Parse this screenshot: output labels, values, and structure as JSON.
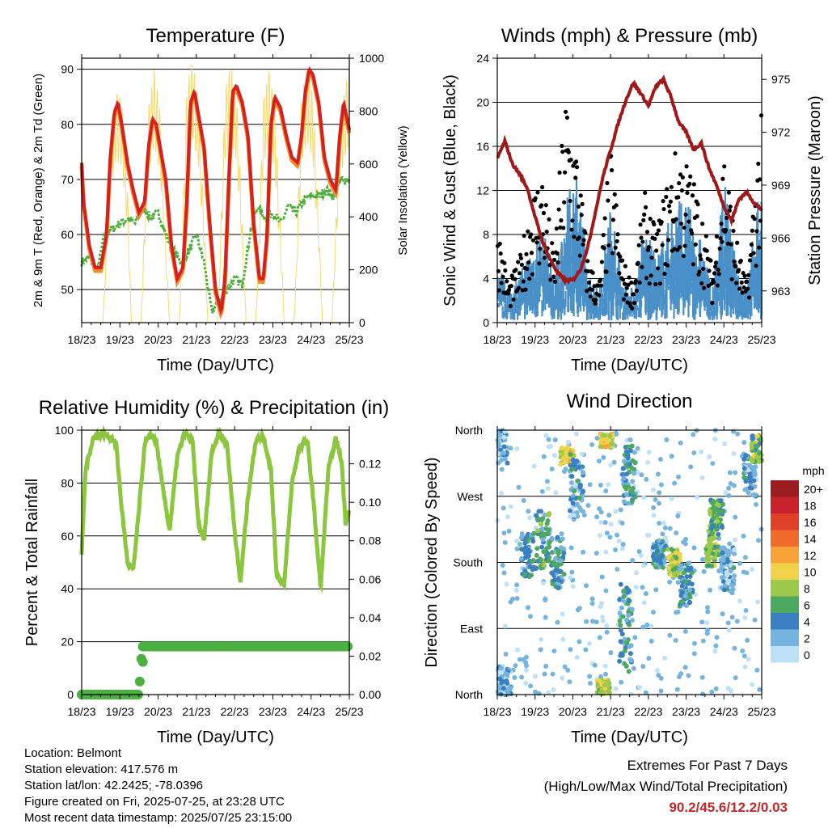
{
  "colors": {
    "temp_2m": "#d62020",
    "temp_9m": "#f28c28",
    "dewpoint": "#4caf3c",
    "solar": "#f7d96b",
    "wind": "#4a90c8",
    "gust": "#000000",
    "pressure": "#a01818",
    "rh": "#8cc63f",
    "rain": "#4cb040",
    "extremes_text": "#c62828"
  },
  "time_axis": {
    "ticks": [
      "18/23",
      "19/23",
      "20/23",
      "21/23",
      "22/23",
      "23/23",
      "24/23",
      "25/23"
    ],
    "xlabel": "Time (Day/UTC)"
  },
  "chart_data": [
    {
      "type": "line",
      "title": "Temperature (F)",
      "xlabel": "Time (Day/UTC)",
      "ylabel": "2m & 9m T (Red, Orange) & 2m Td (Green)",
      "y2label": "Solar Insolation (Yellow)",
      "ylim": [
        44,
        92
      ],
      "y2lim": [
        0,
        1000
      ],
      "yticks": [
        50,
        60,
        70,
        80,
        90
      ],
      "y2ticks": [
        0,
        200,
        400,
        600,
        800,
        1000
      ],
      "series": [
        {
          "key": "temp",
          "x": [
            0,
            0.05,
            0.2,
            0.35,
            0.5,
            0.65,
            0.75,
            0.85,
            0.95,
            1.05,
            1.2,
            1.35,
            1.5,
            1.65,
            1.75,
            1.85,
            1.95,
            2.05,
            2.2,
            2.35,
            2.5,
            2.65,
            2.75,
            2.85,
            2.95,
            3.05,
            3.2,
            3.35,
            3.5,
            3.65,
            3.75,
            3.85,
            3.95,
            4.05,
            4.2,
            4.35,
            4.5,
            4.65,
            4.75,
            4.85,
            4.95,
            5.05,
            5.2,
            5.35,
            5.5,
            5.65,
            5.75,
            5.85,
            5.95,
            6.05,
            6.2,
            6.35,
            6.5,
            6.65,
            6.75,
            6.85,
            7.0
          ],
          "values": [
            73,
            66,
            58,
            54,
            54,
            60,
            74,
            82,
            84,
            80,
            73,
            68,
            64,
            66,
            76,
            81,
            80,
            76,
            70,
            58,
            52,
            54,
            66,
            84,
            86,
            82,
            76,
            62,
            50,
            46,
            52,
            70,
            86,
            87,
            84,
            78,
            62,
            52,
            52,
            60,
            80,
            85,
            83,
            78,
            74,
            73,
            78,
            86,
            90,
            89,
            84,
            74,
            70,
            68,
            78,
            84,
            79
          ]
        },
        {
          "key": "dewpoint",
          "x": [
            0,
            0.2,
            0.4,
            0.6,
            0.8,
            1.0,
            1.2,
            1.4,
            1.6,
            1.8,
            2.0,
            2.2,
            2.4,
            2.6,
            2.8,
            3.0,
            3.2,
            3.4,
            3.6,
            3.8,
            4.0,
            4.2,
            4.4,
            4.6,
            4.8,
            5.0,
            5.2,
            5.4,
            5.6,
            5.8,
            6.0,
            6.2,
            6.4,
            6.6,
            6.8,
            7.0
          ],
          "values": [
            55,
            56,
            53,
            60,
            61,
            62,
            63,
            62,
            65,
            63,
            64,
            60,
            57,
            55,
            57,
            60,
            55,
            46,
            48,
            50,
            52,
            51,
            60,
            65,
            63,
            64,
            62,
            65,
            64,
            66,
            67,
            67,
            68,
            67,
            70,
            70
          ]
        },
        {
          "key": "solar",
          "x": [
            0,
            0.55,
            0.6,
            0.75,
            0.9,
            1.05,
            1.2,
            1.3,
            1.55,
            1.6,
            1.75,
            1.9,
            2.05,
            2.2,
            2.3,
            2.55,
            2.6,
            2.75,
            2.9,
            3.05,
            3.2,
            3.3,
            3.55,
            3.6,
            3.75,
            3.9,
            4.05,
            4.2,
            4.3,
            4.55,
            4.6,
            4.75,
            4.9,
            5.05,
            5.2,
            5.3,
            5.55,
            5.6,
            5.75,
            5.9,
            6.05,
            6.2,
            6.3,
            6.55,
            6.6,
            6.75,
            6.9,
            7.0
          ],
          "values": [
            0,
            0,
            150,
            700,
            880,
            850,
            500,
            0,
            0,
            200,
            820,
            960,
            800,
            300,
            0,
            0,
            160,
            900,
            990,
            850,
            400,
            0,
            0,
            180,
            880,
            980,
            870,
            380,
            0,
            0,
            170,
            850,
            960,
            820,
            350,
            0,
            0,
            160,
            860,
            970,
            860,
            380,
            0,
            0,
            200,
            760,
            900,
            950
          ]
        }
      ]
    },
    {
      "type": "scatter",
      "title": "Winds (mph) & Pressure (mb)",
      "xlabel": "Time (Day/UTC)",
      "ylabel": "Sonic Wind & Gust (Blue, Black)",
      "y2label": "Station Pressure (Maroon)",
      "ylim": [
        0,
        24
      ],
      "y2lim": [
        961.2,
        976.2
      ],
      "yticks": [
        0,
        4,
        8,
        12,
        16,
        20,
        24
      ],
      "y2ticks": [
        963,
        966,
        969,
        972,
        975
      ],
      "series": [
        {
          "key": "wind",
          "x": [
            0,
            0.3,
            0.6,
            0.9,
            1.2,
            1.5,
            1.8,
            2.1,
            2.4,
            2.7,
            3.0,
            3.3,
            3.6,
            3.9,
            4.2,
            4.5,
            4.8,
            5.1,
            5.4,
            5.7,
            6.0,
            6.3,
            6.6,
            6.9,
            7.0
          ],
          "values": [
            4,
            2,
            3,
            5,
            6,
            3,
            7,
            10,
            3,
            2,
            8,
            3,
            2,
            6,
            4,
            6,
            8,
            7,
            5,
            2,
            9,
            4,
            2,
            8,
            9
          ]
        },
        {
          "key": "gust",
          "x": [
            0,
            0.3,
            0.6,
            0.9,
            1.2,
            1.5,
            1.8,
            2.1,
            2.4,
            2.7,
            3.0,
            3.3,
            3.6,
            3.9,
            4.2,
            4.5,
            4.8,
            5.1,
            5.4,
            5.7,
            6.0,
            6.3,
            6.6,
            6.9,
            7.0
          ],
          "values": [
            8,
            3,
            5,
            10,
            12,
            5,
            18,
            14,
            5,
            3,
            14,
            5,
            3,
            10,
            7,
            11,
            14,
            12,
            9,
            4,
            14,
            7,
            3,
            14,
            16
          ]
        },
        {
          "key": "pressure",
          "x": [
            0,
            0.2,
            0.4,
            0.6,
            0.8,
            1.0,
            1.2,
            1.4,
            1.6,
            1.8,
            2.0,
            2.2,
            2.4,
            2.6,
            2.8,
            3.0,
            3.2,
            3.4,
            3.6,
            3.8,
            4.0,
            4.2,
            4.4,
            4.6,
            4.8,
            5.0,
            5.2,
            5.4,
            5.6,
            5.8,
            6.0,
            6.2,
            6.4,
            6.6,
            6.8,
            7.0
          ],
          "values": [
            970.5,
            971.5,
            970.2,
            969.6,
            968.8,
            967.2,
            965.8,
            964.8,
            964.0,
            963.6,
            963.6,
            964.2,
            965.5,
            967.5,
            969.5,
            971.0,
            972.5,
            973.8,
            974.8,
            974.2,
            973.5,
            974.6,
            975.0,
            974.0,
            972.6,
            972.0,
            971.0,
            971.4,
            970.0,
            969.0,
            967.8,
            967.0,
            968.2,
            968.6,
            968.0,
            967.6
          ]
        }
      ]
    },
    {
      "type": "line",
      "title": "Relative Humidity (%) & Precipitation (in)",
      "xlabel": "Time (Day/UTC)",
      "ylabel": "Percent & Total Rainfall",
      "ylim": [
        0,
        100
      ],
      "y2lim": [
        0,
        0.1375
      ],
      "yticks": [
        0,
        20,
        40,
        60,
        80,
        100
      ],
      "y2ticks": [
        "0.00",
        "0.02",
        "0.04",
        "0.06",
        "0.08",
        "0.10",
        "0.12"
      ],
      "series": [
        {
          "key": "rh",
          "x": [
            0,
            0.1,
            0.3,
            0.5,
            0.7,
            0.9,
            1.05,
            1.2,
            1.35,
            1.5,
            1.65,
            1.8,
            1.95,
            2.1,
            2.3,
            2.5,
            2.7,
            2.9,
            3.05,
            3.2,
            3.4,
            3.6,
            3.8,
            4.0,
            4.15,
            4.35,
            4.55,
            4.75,
            4.95,
            5.1,
            5.3,
            5.5,
            5.7,
            5.9,
            6.05,
            6.25,
            6.45,
            6.65,
            6.8,
            6.9,
            7.0
          ],
          "values": [
            53,
            85,
            97,
            99,
            98,
            95,
            70,
            50,
            47,
            70,
            95,
            98,
            96,
            80,
            62,
            90,
            99,
            96,
            65,
            58,
            92,
            99,
            95,
            62,
            42,
            75,
            96,
            98,
            85,
            45,
            42,
            80,
            94,
            96,
            75,
            40,
            85,
            97,
            88,
            65,
            70
          ]
        },
        {
          "key": "rain",
          "x": [
            0,
            1.3,
            1.5,
            1.55,
            1.6,
            1.7,
            7.0
          ],
          "values": [
            0.0,
            0.0,
            0.0,
            0.017,
            0.025,
            0.025,
            0.025
          ]
        }
      ]
    },
    {
      "type": "scatter",
      "title": "Wind Direction",
      "xlabel": "Time (Day/UTC)",
      "ylabel": "Direction (Colored By Speed)",
      "yticks": [
        "North",
        "East",
        "South",
        "West",
        "North"
      ],
      "ylim": [
        0,
        360
      ],
      "legend_title": "mph",
      "legend": [
        "20+",
        "18",
        "16",
        "14",
        "12",
        "10",
        "8",
        "6",
        "4",
        "2",
        "0"
      ],
      "legend_colors": [
        "#9b1d20",
        "#c8232c",
        "#e0402a",
        "#f06a2b",
        "#f8a23a",
        "#f2d24a",
        "#9cc94a",
        "#4da861",
        "#3a80c0",
        "#76b4e0",
        "#bfe1f5"
      ],
      "clusters": [
        {
          "x": 0.1,
          "dir": 340,
          "spread": 25,
          "speed": 2
        },
        {
          "x": 0.2,
          "dir": 20,
          "spread": 20,
          "speed": 2
        },
        {
          "x": 0.8,
          "dir": 190,
          "spread": 30,
          "speed": 4
        },
        {
          "x": 1.2,
          "dir": 210,
          "spread": 40,
          "speed": 5
        },
        {
          "x": 1.6,
          "dir": 180,
          "spread": 35,
          "speed": 4
        },
        {
          "x": 1.85,
          "dir": 325,
          "spread": 12,
          "speed": 9
        },
        {
          "x": 2.1,
          "dir": 280,
          "spread": 40,
          "speed": 3
        },
        {
          "x": 2.9,
          "dir": 345,
          "spread": 10,
          "speed": 9
        },
        {
          "x": 2.8,
          "dir": 10,
          "spread": 10,
          "speed": 8
        },
        {
          "x": 3.5,
          "dir": 300,
          "spread": 40,
          "speed": 4
        },
        {
          "x": 3.4,
          "dir": 90,
          "spread": 60,
          "speed": 4
        },
        {
          "x": 4.3,
          "dir": 190,
          "spread": 20,
          "speed": 4
        },
        {
          "x": 4.7,
          "dir": 180,
          "spread": 18,
          "speed": 8
        },
        {
          "x": 5.0,
          "dir": 150,
          "spread": 30,
          "speed": 4
        },
        {
          "x": 5.7,
          "dir": 200,
          "spread": 25,
          "speed": 7
        },
        {
          "x": 5.8,
          "dir": 245,
          "spread": 20,
          "speed": 6
        },
        {
          "x": 6.1,
          "dir": 170,
          "spread": 30,
          "speed": 3
        },
        {
          "x": 6.7,
          "dir": 300,
          "spread": 30,
          "speed": 3
        },
        {
          "x": 6.9,
          "dir": 335,
          "spread": 18,
          "speed": 7
        }
      ]
    }
  ],
  "info": {
    "location": "Location: Belmont",
    "elevation": "Station elevation: 417.576 m",
    "latlon": "Station lat/lon: 42.2425; -78.0396",
    "created": "Figure created on Fri, 2025-07-25, at 23:28 UTC",
    "timestamp": "Most recent data timestamp: 2025/07/25 23:15:00"
  },
  "extremes": {
    "title": "Extremes For Past 7 Days",
    "subtitle": "(High/Low/Max Wind/Total Precipitation)",
    "values": "90.2/45.6/12.2/0.03"
  }
}
